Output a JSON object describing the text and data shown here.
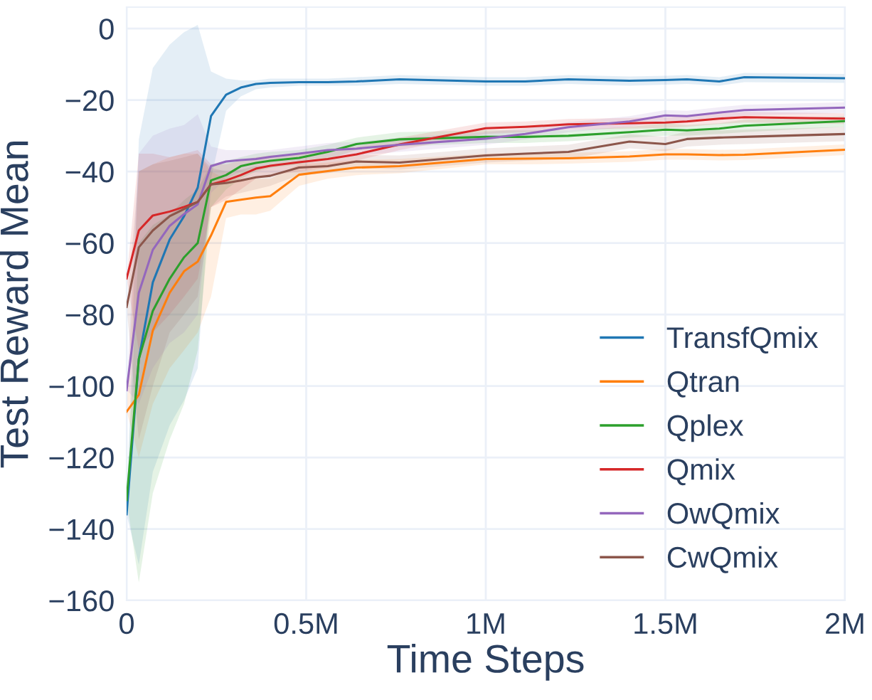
{
  "chart_data": {
    "type": "line",
    "xlabel": "Time Steps",
    "ylabel": "Test Reward Mean",
    "x": [
      0,
      34000,
      73000,
      120000,
      160000,
      198000,
      235000,
      277000,
      318000,
      360000,
      400000,
      480000,
      560000,
      640000,
      760000,
      1000000,
      1110000,
      1230000,
      1400000,
      1500000,
      1560000,
      1650000,
      1720000,
      2000000
    ],
    "series": [
      {
        "name": "TransfQmix",
        "color": "#1f77b4",
        "values": [
          -135.9,
          -92.5,
          -71,
          -59,
          -52.5,
          -44.5,
          -24.5,
          -18.5,
          -16.5,
          -15.5,
          -15.2,
          -15,
          -15,
          -14.8,
          -14.2,
          -14.8,
          -14.8,
          -14.2,
          -14.6,
          -14.4,
          -14.2,
          -14.8,
          -13.6,
          -13.9
        ],
        "lower": [
          -136,
          -150,
          -124,
          -111,
          -104,
          -95,
          -42,
          -23,
          -19,
          -17,
          -16.5,
          -16,
          -16,
          -16,
          -15.5,
          -16,
          -16,
          -15.5,
          -16,
          -15.7,
          -15.5,
          -16,
          -15,
          -15.2
        ],
        "upper": [
          -136,
          -31,
          -11,
          -4.5,
          -1,
          1,
          -12,
          -14,
          -14.5,
          -14.5,
          -14,
          -14,
          -14,
          -13.6,
          -13,
          -13.6,
          -13.6,
          -13,
          -13.4,
          -13.2,
          -13,
          -13.6,
          -12.4,
          -12.7
        ]
      },
      {
        "name": "Qtran",
        "color": "#ff7f0e",
        "values": [
          -107.2,
          -102.5,
          -84.5,
          -73.9,
          -67.9,
          -65.2,
          -57.9,
          -48.5,
          -47.9,
          -47.3,
          -46.9,
          -40.9,
          -39.9,
          -38.9,
          -38.5,
          -36.5,
          -36.4,
          -36.3,
          -35.8,
          -35.2,
          -35.2,
          -35.4,
          -35.3,
          -33.9
        ],
        "lower": [
          -107,
          -120,
          -105,
          -95,
          -90,
          -85,
          -75,
          -53,
          -52,
          -52,
          -51,
          -44,
          -42,
          -41,
          -40.5,
          -38,
          -38,
          -37.8,
          -37.3,
          -36.7,
          -36.7,
          -36.9,
          -36.8,
          -35.4
        ],
        "upper": [
          -107,
          -40,
          -38,
          -36,
          -35,
          -35,
          -40,
          -42,
          -42,
          -42,
          -42,
          -38,
          -37.5,
          -36.8,
          -36.5,
          -35,
          -34.8,
          -34.8,
          -34.3,
          -33.7,
          -33.7,
          -33.9,
          -33.8,
          -32.4
        ]
      },
      {
        "name": "Qplex",
        "color": "#2ca02c",
        "values": [
          -131.9,
          -92.5,
          -79,
          -70,
          -64,
          -60,
          -42.5,
          -41,
          -38.5,
          -37.6,
          -37,
          -36.2,
          -34.5,
          -32.3,
          -31,
          -30.3,
          -30.3,
          -30,
          -29,
          -28.3,
          -28.5,
          -28,
          -27.2,
          -25.9
        ],
        "lower": [
          -132,
          -155,
          -130,
          -115,
          -105,
          -90,
          -50,
          -45,
          -42,
          -40,
          -39,
          -38,
          -36.5,
          -34,
          -33,
          -32,
          -32,
          -31.5,
          -30.5,
          -30,
          -30,
          -29.5,
          -29,
          -27.5
        ],
        "upper": [
          -132,
          -60,
          -55,
          -52,
          -48,
          -45,
          -38,
          -37,
          -36,
          -35,
          -34.5,
          -34,
          -32.5,
          -30.5,
          -29,
          -28.5,
          -28.5,
          -28.5,
          -27.5,
          -26.5,
          -27,
          -26.5,
          -25.5,
          -24.5
        ]
      },
      {
        "name": "Qmix",
        "color": "#d62728",
        "values": [
          -69.9,
          -56.5,
          -52.3,
          -51.2,
          -49.9,
          -48.5,
          -43.6,
          -42.5,
          -41,
          -39.2,
          -38.4,
          -37.4,
          -36.5,
          -35.2,
          -32.4,
          -27.9,
          -27.5,
          -26.8,
          -26.5,
          -26.3,
          -26,
          -25.2,
          -24.8,
          -25.2
        ],
        "lower": [
          -70,
          -90,
          -85,
          -80,
          -75,
          -70,
          -50,
          -48,
          -45,
          -42,
          -41,
          -40,
          -39,
          -37,
          -34,
          -29.5,
          -29,
          -28.3,
          -28,
          -27.8,
          -27.5,
          -26.7,
          -26.3,
          -26.7
        ],
        "upper": [
          -70,
          -35,
          -35,
          -36,
          -35,
          -34,
          -38,
          -38,
          -37,
          -36,
          -35.5,
          -35,
          -34,
          -33,
          -30.5,
          -26.3,
          -26,
          -25.3,
          -25,
          -24.8,
          -24.5,
          -23.7,
          -23.3,
          -23.7
        ]
      },
      {
        "name": "OwQmix",
        "color": "#9467bd",
        "values": [
          -101.2,
          -73.9,
          -61.9,
          -55.2,
          -51.9,
          -49.2,
          -38.5,
          -37.2,
          -36.8,
          -36.5,
          -35.9,
          -35,
          -34,
          -33.6,
          -32.5,
          -30.8,
          -29.5,
          -27.6,
          -26,
          -24.3,
          -24.5,
          -23.5,
          -22.8,
          -22.1
        ],
        "lower": [
          -101,
          -105,
          -95,
          -88,
          -85,
          -80,
          -46,
          -42,
          -40,
          -39,
          -38,
          -37,
          -36,
          -35.5,
          -34.5,
          -32.5,
          -31,
          -29,
          -27.5,
          -25.8,
          -26,
          -25,
          -24.3,
          -23.6
        ],
        "upper": [
          -101,
          -35,
          -30,
          -28,
          -27,
          -24,
          -33,
          -34,
          -34,
          -34,
          -34,
          -33,
          -32,
          -31.7,
          -30.5,
          -29,
          -28,
          -26.2,
          -24.5,
          -22.8,
          -23,
          -22,
          -21.3,
          -20.6
        ]
      },
      {
        "name": "CwQmix",
        "color": "#8c564b",
        "values": [
          -77.9,
          -61.2,
          -56.5,
          -52.5,
          -50.5,
          -48.5,
          -43.6,
          -43.2,
          -42.5,
          -41.6,
          -41.2,
          -38.9,
          -38.5,
          -37.2,
          -37.5,
          -35.5,
          -35,
          -34.5,
          -31.6,
          -32.3,
          -30.9,
          -30.5,
          -30.3,
          -29.5
        ],
        "lower": [
          -78,
          -115,
          -100,
          -85,
          -80,
          -75,
          -50,
          -47,
          -46,
          -45,
          -44,
          -41,
          -40.5,
          -39,
          -39.5,
          -37.5,
          -37,
          -36.5,
          -33.5,
          -34.3,
          -33,
          -32.5,
          -32.3,
          -31.5
        ],
        "upper": [
          -78,
          -40,
          -38,
          -37,
          -36,
          -35,
          -39,
          -40,
          -39.5,
          -38.5,
          -38.5,
          -37,
          -36.5,
          -35.4,
          -35.5,
          -33.5,
          -33,
          -32.5,
          -29.6,
          -30.3,
          -28.8,
          -28.5,
          -28.3,
          -27.5
        ]
      }
    ],
    "xlim": [
      0,
      2000000
    ],
    "xticks": [
      0,
      {
        "value": 500000,
        "label": "0.5M"
      },
      {
        "value": 1000000,
        "label": "1M"
      },
      {
        "value": 1500000,
        "label": "1.5M"
      },
      {
        "value": 2000000,
        "label": "2M"
      }
    ],
    "ylim": [
      -160,
      6
    ],
    "yticks": [
      {
        "value": -160,
        "label": "−160"
      },
      {
        "value": -140,
        "label": "−140"
      },
      {
        "value": -120,
        "label": "−120"
      },
      {
        "value": -100,
        "label": "−100"
      },
      {
        "value": -80,
        "label": "−80"
      },
      {
        "value": -60,
        "label": "−60"
      },
      {
        "value": -40,
        "label": "−40"
      },
      {
        "value": -20,
        "label": "−20"
      },
      0
    ],
    "grid": true,
    "legend": "bottom right",
    "marker": "none",
    "line_style": "solid"
  }
}
